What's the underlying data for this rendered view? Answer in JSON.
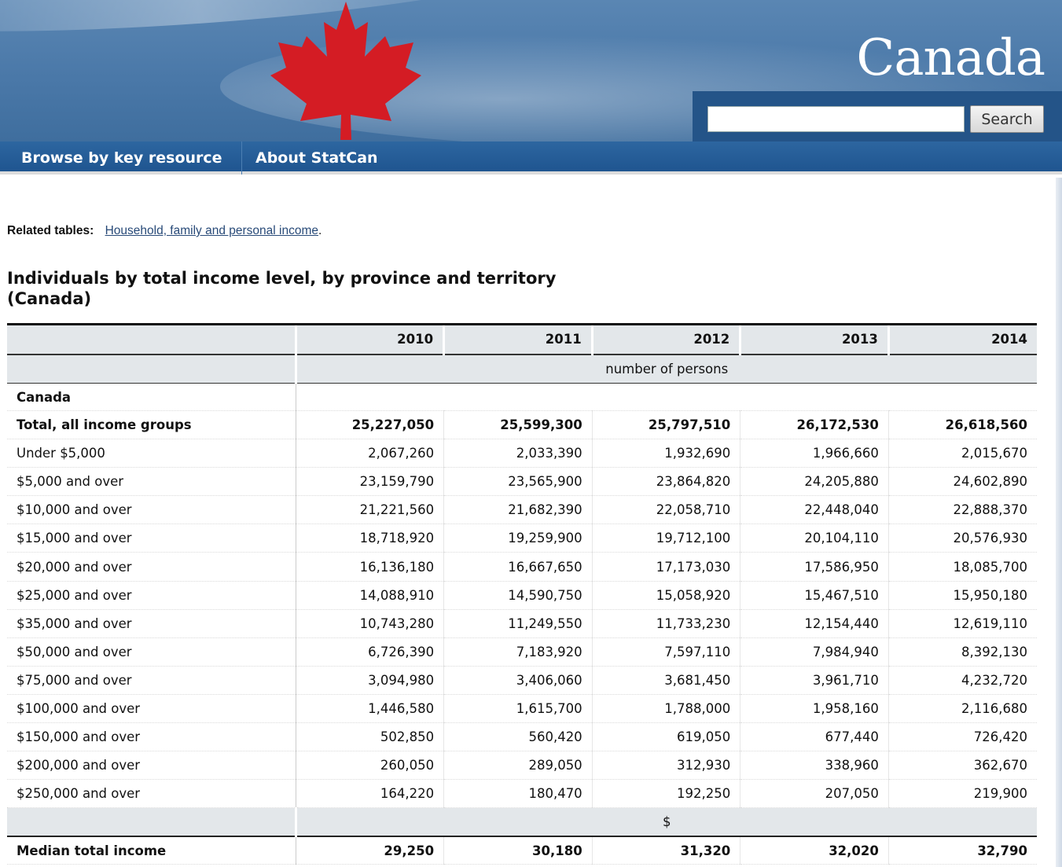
{
  "header": {
    "wordmark": "Canada",
    "search_placeholder": "",
    "search_button": "Search"
  },
  "nav": {
    "items": [
      {
        "label": "Browse by key resource"
      },
      {
        "label": "About StatCan"
      }
    ]
  },
  "related": {
    "label": "Related tables:",
    "link": "Household, family and personal income",
    "suffix": "."
  },
  "table": {
    "title": "Individuals by total income level, by province and territory (Canada)",
    "years": [
      "2010",
      "2011",
      "2012",
      "2013",
      "2014"
    ],
    "unit_persons": "number of persons",
    "group": "Canada",
    "rows": [
      {
        "label": "Total, all income groups",
        "values": [
          "25,227,050",
          "25,599,300",
          "25,797,510",
          "26,172,530",
          "26,618,560"
        ]
      },
      {
        "label": "Under $5,000",
        "values": [
          "2,067,260",
          "2,033,390",
          "1,932,690",
          "1,966,660",
          "2,015,670"
        ]
      },
      {
        "label": "$5,000 and over",
        "values": [
          "23,159,790",
          "23,565,900",
          "23,864,820",
          "24,205,880",
          "24,602,890"
        ]
      },
      {
        "label": "$10,000 and over",
        "values": [
          "21,221,560",
          "21,682,390",
          "22,058,710",
          "22,448,040",
          "22,888,370"
        ]
      },
      {
        "label": "$15,000 and over",
        "values": [
          "18,718,920",
          "19,259,900",
          "19,712,100",
          "20,104,110",
          "20,576,930"
        ]
      },
      {
        "label": "$20,000 and over",
        "values": [
          "16,136,180",
          "16,667,650",
          "17,173,030",
          "17,586,950",
          "18,085,700"
        ]
      },
      {
        "label": "$25,000 and over",
        "values": [
          "14,088,910",
          "14,590,750",
          "15,058,920",
          "15,467,510",
          "15,950,180"
        ]
      },
      {
        "label": "$35,000 and over",
        "values": [
          "10,743,280",
          "11,249,550",
          "11,733,230",
          "12,154,440",
          "12,619,110"
        ]
      },
      {
        "label": "$50,000 and over",
        "values": [
          "6,726,390",
          "7,183,920",
          "7,597,110",
          "7,984,940",
          "8,392,130"
        ]
      },
      {
        "label": "$75,000 and over",
        "values": [
          "3,094,980",
          "3,406,060",
          "3,681,450",
          "3,961,710",
          "4,232,720"
        ]
      },
      {
        "label": "$100,000 and over",
        "values": [
          "1,446,580",
          "1,615,700",
          "1,788,000",
          "1,958,160",
          "2,116,680"
        ]
      },
      {
        "label": "$150,000 and over",
        "values": [
          "502,850",
          "560,420",
          "619,050",
          "677,440",
          "726,420"
        ]
      },
      {
        "label": "$200,000 and over",
        "values": [
          "260,050",
          "289,050",
          "312,930",
          "338,960",
          "362,670"
        ]
      },
      {
        "label": "$250,000 and over",
        "values": [
          "164,220",
          "180,470",
          "192,250",
          "207,050",
          "219,900"
        ]
      }
    ],
    "unit_dollars": "$",
    "median": {
      "label": "Median total income",
      "values": [
        "29,250",
        "30,180",
        "31,320",
        "32,020",
        "32,790"
      ]
    }
  },
  "colors": {
    "banner": "#4a78a8",
    "navbar": "#1f5590",
    "leaf_red": "#d41c24",
    "link": "#284a78"
  }
}
